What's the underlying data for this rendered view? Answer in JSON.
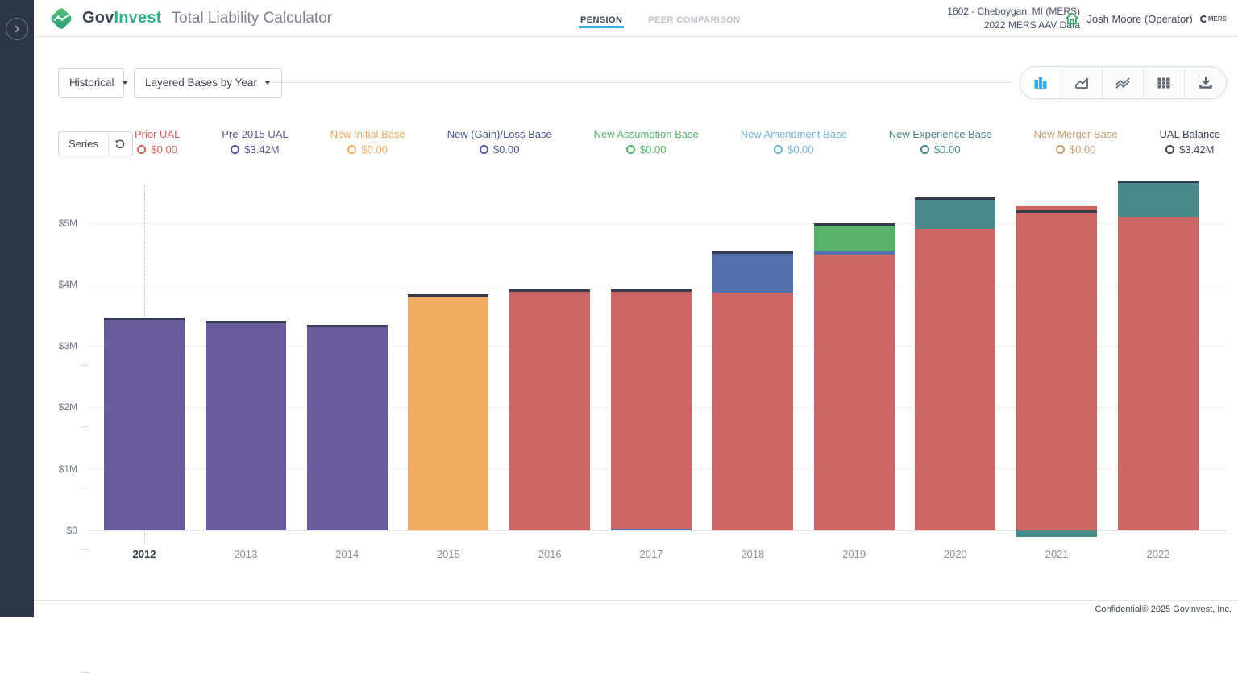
{
  "header": {
    "brand_gov": "Gov",
    "brand_invest": "Invest",
    "app_title": "Total Liability Calculator",
    "tabs": [
      {
        "label": "PENSION",
        "active": true
      },
      {
        "label": "PEER COMPARISON",
        "active": false
      }
    ],
    "context_line1": "1602 - Cheboygan, MI (MERS)",
    "context_line2": "2022 MERS AAV Data",
    "user_name": "Josh Moore (Operator)",
    "partner_logo": "MERS"
  },
  "controls": {
    "view_dropdown": "Historical",
    "mode_dropdown": "Layered Bases by Year",
    "series_button": "Series"
  },
  "toolbar": {
    "active_view": "stacked-bar",
    "buttons": [
      "bar-chart-icon",
      "area-chart-icon",
      "multi-line-icon",
      "table-icon",
      "download-icon"
    ],
    "accent_color": "#29b1e8",
    "icon_color": "#5c6672"
  },
  "legend": {
    "items": [
      {
        "label": "Prior UAL",
        "value": "$0.00",
        "color": "#cf6360"
      },
      {
        "label": "Pre-2015 UAL",
        "value": "$3.42M",
        "color": "#5d5095"
      },
      {
        "label": "New Initial Base",
        "value": "$0.00",
        "color": "#efa85f"
      },
      {
        "label": "New (Gain)/Loss Base",
        "value": "$0.00",
        "color": "#47569e"
      },
      {
        "label": "New Assumption Base",
        "value": "$0.00",
        "color": "#58b269"
      },
      {
        "label": "New Amendment Base",
        "value": "$0.00",
        "color": "#74b2d9"
      },
      {
        "label": "New Experience Base",
        "value": "$0.00",
        "color": "#4b8487"
      },
      {
        "label": "New Merger Base",
        "value": "$0.00",
        "color": "#c79d70"
      },
      {
        "label": "UAL Balance",
        "value": "$3.42M",
        "color": "#3a4354"
      }
    ]
  },
  "chart_data": {
    "type": "bar",
    "stacked": true,
    "title": "Layered Bases by Year (Historical)",
    "xlabel": "",
    "ylabel": "",
    "ylim": [
      -0.2,
      5.85
    ],
    "yticks": [
      {
        "value": 0,
        "label": "$0"
      },
      {
        "value": 1,
        "label": "$1M"
      },
      {
        "value": 2,
        "label": "$2M"
      },
      {
        "value": 3,
        "label": "$3M"
      },
      {
        "value": 4,
        "label": "$4M"
      },
      {
        "value": 5,
        "label": "$5M"
      }
    ],
    "categories": [
      "2012",
      "2013",
      "2014",
      "2015",
      "2016",
      "2017",
      "2018",
      "2019",
      "2020",
      "2021",
      "2022"
    ],
    "selected_category": "2012",
    "series_colors": {
      "prior_ual": "#cd6765",
      "pre2015_ual": "#6a5b9d",
      "new_initial": "#f2ab62",
      "gain_loss": "#5570ae",
      "assumption": "#57b368",
      "amendment": "#74b2d9",
      "experience": "#49898c",
      "merger": "#c79d70",
      "ual_balance": "#333b4f"
    },
    "bars": [
      {
        "year": "2012",
        "segments": [
          {
            "series": "pre2015_ual",
            "from": 0,
            "to": 3.42
          }
        ],
        "ual_balance": 3.42
      },
      {
        "year": "2013",
        "segments": [
          {
            "series": "pre2015_ual",
            "from": 0,
            "to": 3.37
          }
        ],
        "ual_balance": 3.37
      },
      {
        "year": "2014",
        "segments": [
          {
            "series": "pre2015_ual",
            "from": 0,
            "to": 3.3
          }
        ],
        "ual_balance": 3.3
      },
      {
        "year": "2015",
        "segments": [
          {
            "series": "new_initial",
            "from": 0,
            "to": 3.8
          }
        ],
        "ual_balance": 3.8
      },
      {
        "year": "2016",
        "segments": [
          {
            "series": "prior_ual",
            "from": 0,
            "to": 3.88
          }
        ],
        "ual_balance": 3.88
      },
      {
        "year": "2017",
        "segments": [
          {
            "series": "gain_loss",
            "from": 0,
            "to": 0.03
          },
          {
            "series": "prior_ual",
            "from": 0.03,
            "to": 3.88
          }
        ],
        "ual_balance": 3.88
      },
      {
        "year": "2018",
        "segments": [
          {
            "series": "prior_ual",
            "from": 0,
            "to": 3.87
          },
          {
            "series": "gain_loss",
            "from": 3.87,
            "to": 4.49
          }
        ],
        "ual_balance": 4.49
      },
      {
        "year": "2019",
        "segments": [
          {
            "series": "prior_ual",
            "from": 0,
            "to": 4.48
          },
          {
            "series": "gain_loss",
            "from": 4.48,
            "to": 4.54
          },
          {
            "series": "assumption",
            "from": 4.54,
            "to": 4.95
          }
        ],
        "ual_balance": 4.95
      },
      {
        "year": "2020",
        "segments": [
          {
            "series": "prior_ual",
            "from": 0,
            "to": 4.9
          },
          {
            "series": "experience",
            "from": 4.9,
            "to": 5.37
          }
        ],
        "ual_balance": 5.37
      },
      {
        "year": "2021",
        "segments": [
          {
            "series": "experience",
            "from": -0.1,
            "to": 0
          },
          {
            "series": "prior_ual",
            "from": 0,
            "to": 5.28
          }
        ],
        "ual_balance": 5.17
      },
      {
        "year": "2022",
        "segments": [
          {
            "series": "prior_ual",
            "from": 0,
            "to": 5.1
          },
          {
            "series": "experience",
            "from": 5.1,
            "to": 5.65
          }
        ],
        "ual_balance": 5.65
      }
    ]
  },
  "footer": {
    "copyright": "Confidential© 2025 Govinvest, Inc."
  }
}
